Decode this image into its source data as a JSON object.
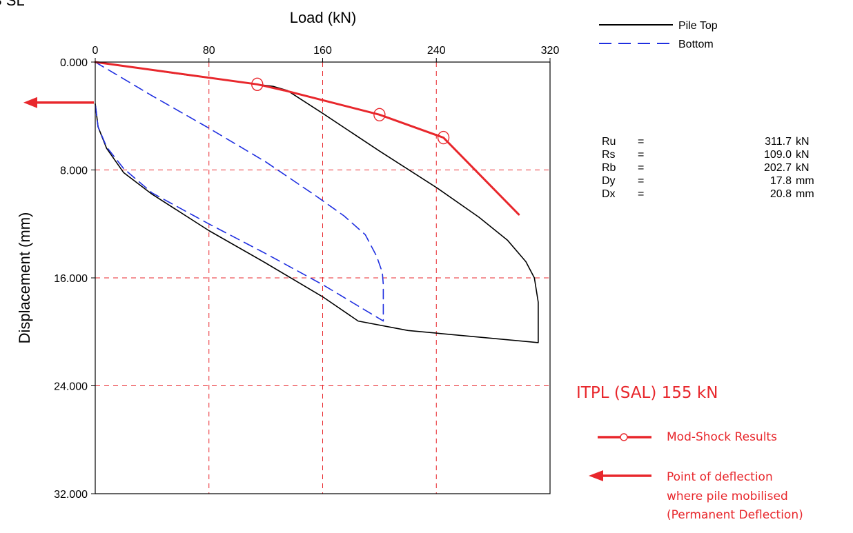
{
  "corner_label": "S SL",
  "chart_data": {
    "type": "line",
    "xlabel": "Load (kN)",
    "ylabel": "Displacement (mm)",
    "xlim": [
      0,
      320
    ],
    "ylim": [
      0,
      32
    ],
    "y_inverted": true,
    "x_axis_position": "top",
    "x_ticks": [
      0,
      80,
      160,
      240,
      320
    ],
    "x_tick_labels": [
      "0",
      "80",
      "160",
      "240",
      "320"
    ],
    "y_ticks": [
      0,
      8,
      16,
      24,
      32
    ],
    "y_tick_labels": [
      "0.000",
      "8.000",
      "16.000",
      "24.000",
      "32.000"
    ],
    "grid": {
      "style": "dashed",
      "color": "#e8272c",
      "x": [
        80,
        160,
        240
      ],
      "y": [
        8,
        16,
        24
      ]
    },
    "legend": {
      "placement": "top-right",
      "entries": [
        {
          "label": "Pile Top",
          "color": "#000000",
          "dash": "solid"
        },
        {
          "label": "Bottom",
          "color": "#1f2fe0",
          "dash": "dashed"
        }
      ]
    },
    "series": [
      {
        "name": "Pile Top",
        "color": "#000000",
        "dash": "solid",
        "x": [
          0,
          60,
          110,
          125,
          135,
          160,
          200,
          240,
          270,
          290,
          303,
          309,
          311.7,
          311.7,
          311.7,
          220,
          185,
          160,
          120,
          80,
          40,
          20,
          8,
          2,
          0
        ],
        "y": [
          0,
          0.9,
          1.6,
          1.8,
          2.1,
          3.8,
          6.6,
          9.3,
          11.5,
          13.2,
          14.8,
          16.0,
          17.8,
          19.4,
          20.8,
          19.9,
          19.2,
          17.4,
          14.9,
          12.5,
          9.8,
          8.2,
          6.4,
          4.8,
          3.1
        ]
      },
      {
        "name": "Bottom",
        "color": "#1f2fe0",
        "dash": "dashed",
        "x": [
          0,
          40,
          80,
          120,
          155,
          175,
          190,
          198,
          202,
          202.7,
          202.7,
          160,
          120,
          80,
          40,
          20,
          8,
          2,
          0
        ],
        "y": [
          0,
          2.5,
          4.9,
          7.4,
          9.9,
          11.4,
          12.8,
          14.4,
          15.6,
          16.5,
          19.2,
          16.5,
          14.2,
          12.0,
          9.7,
          7.9,
          6.3,
          4.8,
          3.1
        ]
      },
      {
        "name": "Mod-Shock Results",
        "color": "#e8272c",
        "dash": "solid",
        "marker": "open-circle",
        "x": [
          0,
          114,
          133,
          200,
          245,
          298
        ],
        "y": [
          0,
          1.65,
          2.1,
          3.9,
          5.6,
          11.3
        ],
        "marked_points": [
          [
            114,
            1.65
          ],
          [
            200,
            3.9
          ],
          [
            245,
            5.6
          ]
        ]
      }
    ],
    "mobilisation_arrow_y": 3.0,
    "parameters": [
      {
        "name": "Ru",
        "value": "311.7",
        "unit": "kN"
      },
      {
        "name": "Rs",
        "value": "109.0",
        "unit": "kN"
      },
      {
        "name": "Rb",
        "value": "202.7",
        "unit": "kN"
      },
      {
        "name": "Dy",
        "value": "17.8",
        "unit": "mm"
      },
      {
        "name": "Dx",
        "value": "20.8",
        "unit": "mm"
      }
    ],
    "annotations": {
      "itpl_label": "ITPL (SAL)  155 kN",
      "mod_shock_label": "Mod-Shock Results",
      "deflection_lines": [
        "Point of deflection",
        "where pile mobilised",
        "(Permanent Deflection)"
      ]
    },
    "colors": {
      "annotation": "#e8272c",
      "bottom": "#1f2fe0",
      "frame": "#000000"
    }
  }
}
